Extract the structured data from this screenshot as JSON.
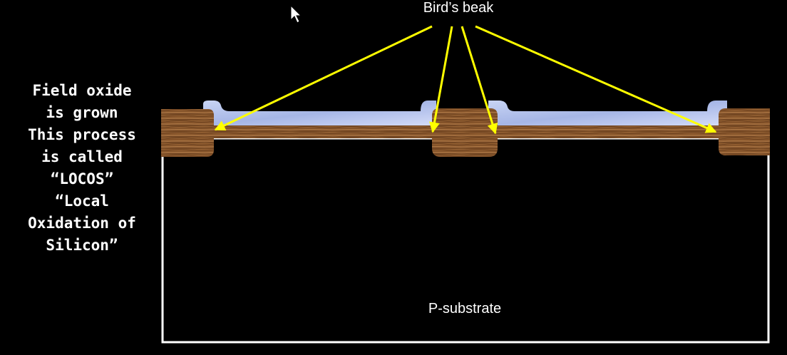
{
  "caption": {
    "lines": [
      "Field oxide",
      "is grown",
      "This process",
      "is called",
      "“LOCOS”",
      "“Local",
      "Oxidation of",
      "Silicon”"
    ]
  },
  "labels": {
    "birds_beak": "Bird’s beak",
    "substrate": "P-substrate"
  },
  "colors": {
    "background": "#000000",
    "substrate_outline": "#ffffff",
    "field_oxide_wood": "#8b5a2b",
    "nitride_mask": "#b8c6ee",
    "pad_oxide": "#7b4a22",
    "arrow": "#ffff00",
    "text": "#ffffff"
  },
  "icons": {
    "cursor": "mouse-pointer-icon"
  }
}
